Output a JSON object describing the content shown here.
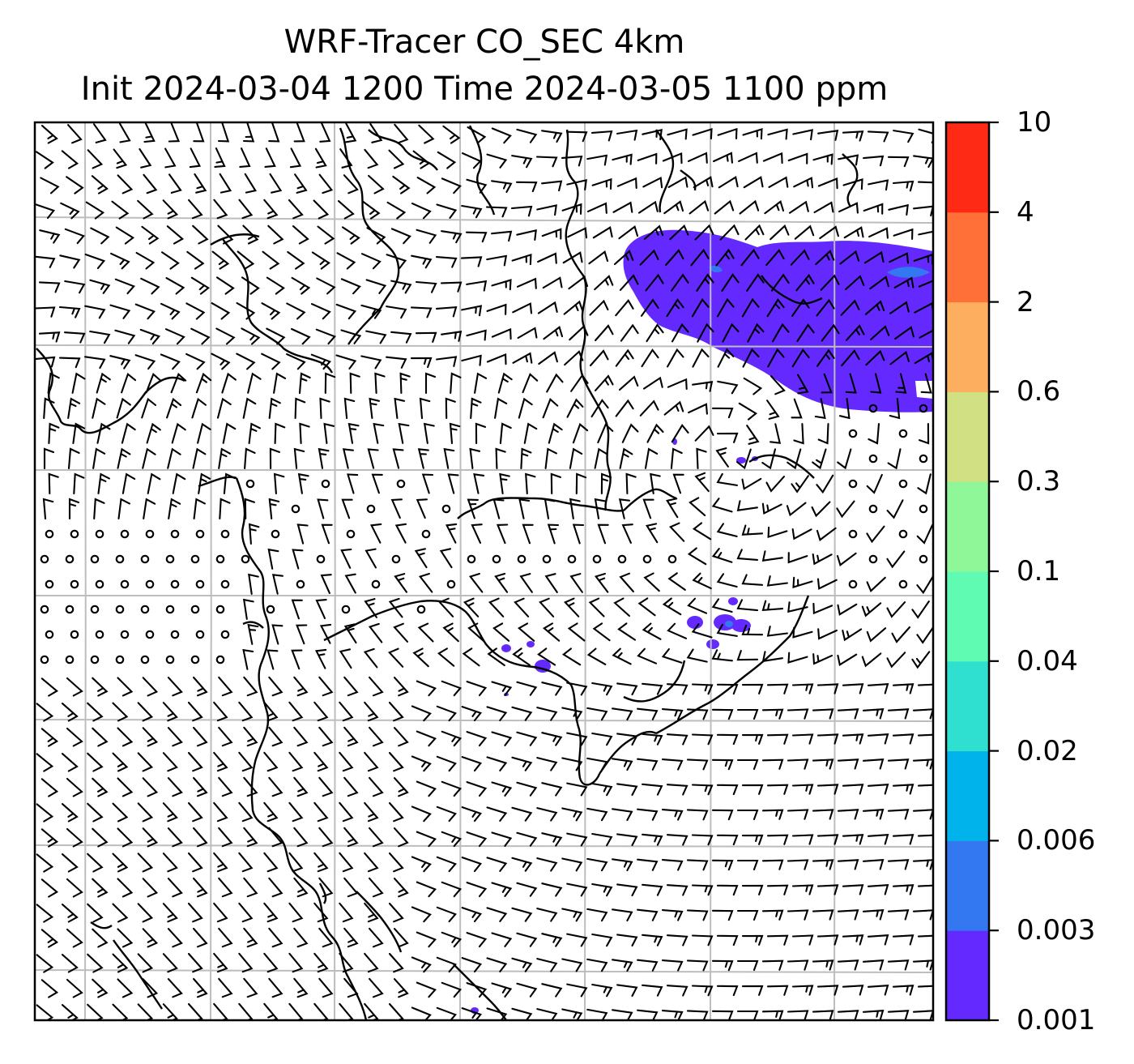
{
  "title": {
    "line1": "WRF-Tracer CO_SEC 4km",
    "line2": "Init 2024-03-04 1200 Time 2024-03-05 1100 ppm"
  },
  "colorbar": {
    "levels": [
      "0.001",
      "0.003",
      "0.006",
      "0.02",
      "0.04",
      "0.1",
      "0.3",
      "0.6",
      "2",
      "4",
      "10"
    ],
    "colors": [
      "#6329ff",
      "#3377f1",
      "#00b3ea",
      "#2fdfd0",
      "#5ffbb3",
      "#90f798",
      "#d1e083",
      "#fdae5f",
      "#ff7038",
      "#ff2a16"
    ]
  },
  "map": {
    "background": "#ffffff",
    "gridline_color": "#bdbdbd",
    "coastline_color": "#000000",
    "tracer_color": "#6329ff",
    "barb_color": "#000000"
  }
}
